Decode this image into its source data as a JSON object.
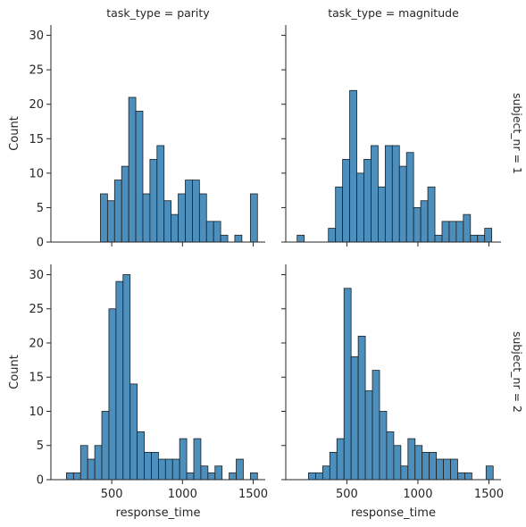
{
  "chart_data": {
    "type": "bar",
    "layout": "facet-grid-2x2",
    "bar_color": "#4c8fbd",
    "edge_color": "#1f1f1f",
    "x_range": [
      70,
      1585
    ],
    "y_range": [
      0,
      31.5
    ],
    "x_ticks": [
      500,
      1000,
      1500
    ],
    "y_ticks": [
      0,
      5,
      10,
      15,
      20,
      25,
      30
    ],
    "xlabel": "response_time",
    "ylabel": "Count",
    "grid": false,
    "legend": "none",
    "panels": [
      {
        "col_title": "task_type = parity",
        "row_title": "",
        "bins": [
          {
            "x0": 420,
            "x1": 470,
            "count": 7
          },
          {
            "x0": 470,
            "x1": 520,
            "count": 6
          },
          {
            "x0": 520,
            "x1": 570,
            "count": 9
          },
          {
            "x0": 570,
            "x1": 620,
            "count": 11
          },
          {
            "x0": 620,
            "x1": 670,
            "count": 21
          },
          {
            "x0": 670,
            "x1": 720,
            "count": 19
          },
          {
            "x0": 720,
            "x1": 770,
            "count": 7
          },
          {
            "x0": 770,
            "x1": 820,
            "count": 12
          },
          {
            "x0": 820,
            "x1": 870,
            "count": 14
          },
          {
            "x0": 870,
            "x1": 920,
            "count": 6
          },
          {
            "x0": 920,
            "x1": 970,
            "count": 4
          },
          {
            "x0": 970,
            "x1": 1020,
            "count": 7
          },
          {
            "x0": 1020,
            "x1": 1070,
            "count": 9
          },
          {
            "x0": 1070,
            "x1": 1120,
            "count": 9
          },
          {
            "x0": 1120,
            "x1": 1170,
            "count": 7
          },
          {
            "x0": 1170,
            "x1": 1220,
            "count": 3
          },
          {
            "x0": 1220,
            "x1": 1270,
            "count": 3
          },
          {
            "x0": 1270,
            "x1": 1320,
            "count": 1
          },
          {
            "x0": 1370,
            "x1": 1420,
            "count": 1
          },
          {
            "x0": 1480,
            "x1": 1530,
            "count": 7
          }
        ]
      },
      {
        "col_title": "task_type = magnitude",
        "row_title": "subject_nr = 1",
        "bins": [
          {
            "x0": 150,
            "x1": 200,
            "count": 1
          },
          {
            "x0": 370,
            "x1": 420,
            "count": 2
          },
          {
            "x0": 420,
            "x1": 470,
            "count": 8
          },
          {
            "x0": 470,
            "x1": 520,
            "count": 12
          },
          {
            "x0": 520,
            "x1": 570,
            "count": 22
          },
          {
            "x0": 570,
            "x1": 620,
            "count": 10
          },
          {
            "x0": 620,
            "x1": 670,
            "count": 12
          },
          {
            "x0": 670,
            "x1": 720,
            "count": 14
          },
          {
            "x0": 720,
            "x1": 770,
            "count": 8
          },
          {
            "x0": 770,
            "x1": 820,
            "count": 14
          },
          {
            "x0": 820,
            "x1": 870,
            "count": 14
          },
          {
            "x0": 870,
            "x1": 920,
            "count": 11
          },
          {
            "x0": 920,
            "x1": 970,
            "count": 13
          },
          {
            "x0": 970,
            "x1": 1020,
            "count": 5
          },
          {
            "x0": 1020,
            "x1": 1070,
            "count": 6
          },
          {
            "x0": 1070,
            "x1": 1120,
            "count": 8
          },
          {
            "x0": 1120,
            "x1": 1170,
            "count": 1
          },
          {
            "x0": 1170,
            "x1": 1220,
            "count": 3
          },
          {
            "x0": 1220,
            "x1": 1270,
            "count": 3
          },
          {
            "x0": 1270,
            "x1": 1320,
            "count": 3
          },
          {
            "x0": 1320,
            "x1": 1370,
            "count": 4
          },
          {
            "x0": 1370,
            "x1": 1420,
            "count": 1
          },
          {
            "x0": 1420,
            "x1": 1470,
            "count": 1
          },
          {
            "x0": 1470,
            "x1": 1520,
            "count": 2
          }
        ]
      },
      {
        "col_title": "",
        "row_title": "",
        "bins": [
          {
            "x0": 180,
            "x1": 230,
            "count": 1
          },
          {
            "x0": 230,
            "x1": 280,
            "count": 1
          },
          {
            "x0": 280,
            "x1": 330,
            "count": 5
          },
          {
            "x0": 330,
            "x1": 380,
            "count": 3
          },
          {
            "x0": 380,
            "x1": 430,
            "count": 5
          },
          {
            "x0": 430,
            "x1": 480,
            "count": 10
          },
          {
            "x0": 480,
            "x1": 530,
            "count": 25
          },
          {
            "x0": 530,
            "x1": 580,
            "count": 29
          },
          {
            "x0": 580,
            "x1": 630,
            "count": 30
          },
          {
            "x0": 630,
            "x1": 680,
            "count": 14
          },
          {
            "x0": 680,
            "x1": 730,
            "count": 7
          },
          {
            "x0": 730,
            "x1": 780,
            "count": 4
          },
          {
            "x0": 780,
            "x1": 830,
            "count": 4
          },
          {
            "x0": 830,
            "x1": 880,
            "count": 3
          },
          {
            "x0": 880,
            "x1": 930,
            "count": 3
          },
          {
            "x0": 930,
            "x1": 980,
            "count": 3
          },
          {
            "x0": 980,
            "x1": 1030,
            "count": 6
          },
          {
            "x0": 1030,
            "x1": 1080,
            "count": 1
          },
          {
            "x0": 1080,
            "x1": 1130,
            "count": 6
          },
          {
            "x0": 1130,
            "x1": 1180,
            "count": 2
          },
          {
            "x0": 1180,
            "x1": 1230,
            "count": 1
          },
          {
            "x0": 1230,
            "x1": 1280,
            "count": 2
          },
          {
            "x0": 1330,
            "x1": 1380,
            "count": 1
          },
          {
            "x0": 1380,
            "x1": 1430,
            "count": 3
          },
          {
            "x0": 1480,
            "x1": 1530,
            "count": 1
          }
        ]
      },
      {
        "col_title": "",
        "row_title": "subject_nr = 2",
        "bins": [
          {
            "x0": 230,
            "x1": 280,
            "count": 1
          },
          {
            "x0": 280,
            "x1": 330,
            "count": 1
          },
          {
            "x0": 330,
            "x1": 380,
            "count": 2
          },
          {
            "x0": 380,
            "x1": 430,
            "count": 4
          },
          {
            "x0": 430,
            "x1": 480,
            "count": 6
          },
          {
            "x0": 480,
            "x1": 530,
            "count": 28
          },
          {
            "x0": 530,
            "x1": 580,
            "count": 18
          },
          {
            "x0": 580,
            "x1": 630,
            "count": 21
          },
          {
            "x0": 630,
            "x1": 680,
            "count": 13
          },
          {
            "x0": 680,
            "x1": 730,
            "count": 16
          },
          {
            "x0": 730,
            "x1": 780,
            "count": 10
          },
          {
            "x0": 780,
            "x1": 830,
            "count": 7
          },
          {
            "x0": 830,
            "x1": 880,
            "count": 5
          },
          {
            "x0": 880,
            "x1": 930,
            "count": 2
          },
          {
            "x0": 930,
            "x1": 980,
            "count": 6
          },
          {
            "x0": 980,
            "x1": 1030,
            "count": 5
          },
          {
            "x0": 1030,
            "x1": 1080,
            "count": 4
          },
          {
            "x0": 1080,
            "x1": 1130,
            "count": 4
          },
          {
            "x0": 1130,
            "x1": 1180,
            "count": 3
          },
          {
            "x0": 1180,
            "x1": 1230,
            "count": 3
          },
          {
            "x0": 1230,
            "x1": 1280,
            "count": 3
          },
          {
            "x0": 1280,
            "x1": 1330,
            "count": 1
          },
          {
            "x0": 1330,
            "x1": 1380,
            "count": 1
          },
          {
            "x0": 1480,
            "x1": 1530,
            "count": 2
          }
        ]
      }
    ]
  }
}
